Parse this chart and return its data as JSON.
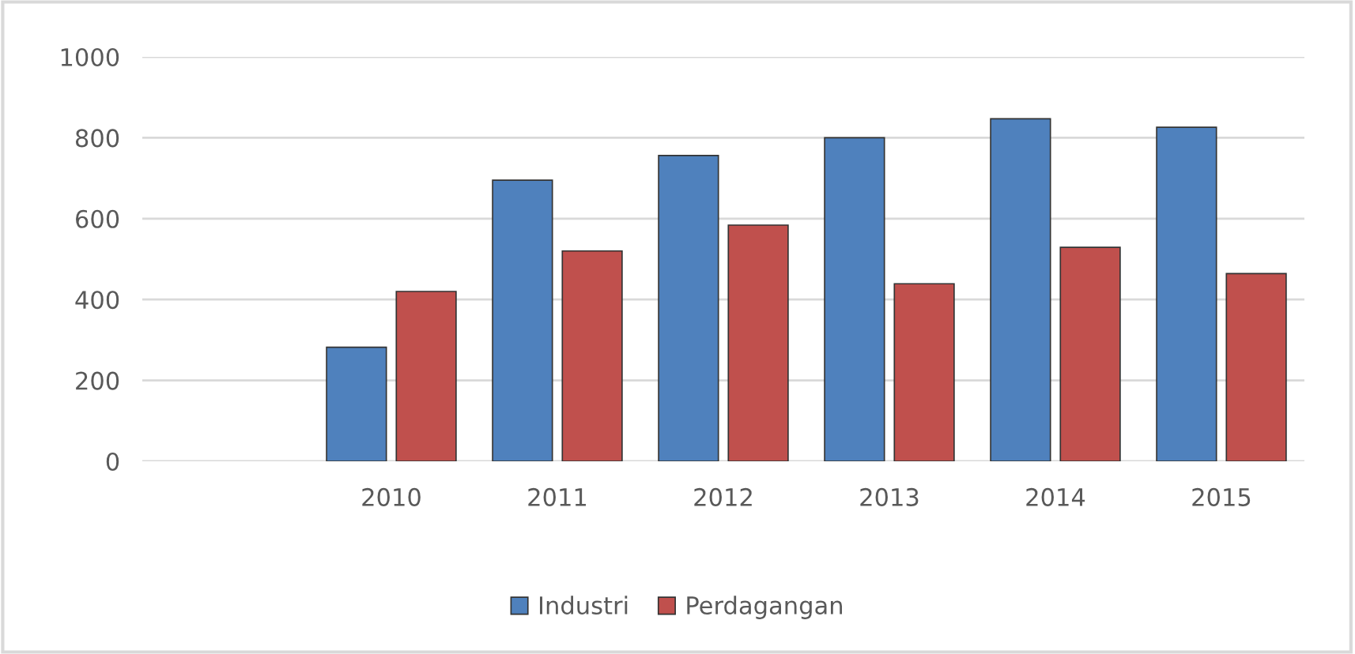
{
  "chart_data": {
    "type": "bar",
    "categories": [
      null,
      "2010",
      "2011",
      "2012",
      "2013",
      "2014",
      "2015"
    ],
    "series": [
      {
        "name": "Industri",
        "color": "#4f81bd",
        "values": [
          null,
          282,
          695,
          756,
          800,
          847,
          826
        ]
      },
      {
        "name": "Perdagangan",
        "color": "#c0504d",
        "values": [
          null,
          420,
          520,
          584,
          439,
          529,
          464
        ]
      }
    ],
    "ylim": [
      0,
      1000
    ],
    "yticks": [
      0,
      200,
      400,
      600,
      800,
      1000
    ],
    "grid": "y",
    "legend": "bottom"
  }
}
